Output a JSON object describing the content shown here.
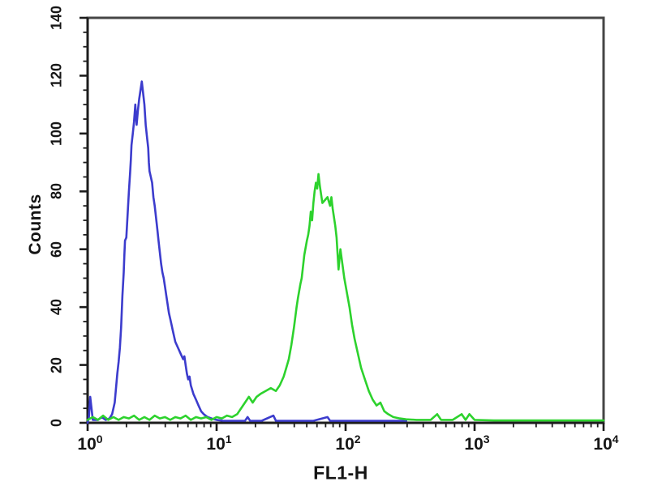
{
  "figure": {
    "background_color": "#ffffff",
    "frame_color": "#454545",
    "tick_color": "#1c1c1c",
    "text_color": "#141414"
  },
  "chart_data": {
    "type": "line",
    "subtype": "flow-cytometry-overlay-histogram",
    "title": "",
    "xlabel": "FL1-H",
    "ylabel": "Counts",
    "x_scale": "log10",
    "x_tick_exponents": [
      0,
      1,
      2,
      3,
      4
    ],
    "xlim": [
      1,
      10000
    ],
    "y_ticks": [
      0,
      20,
      40,
      60,
      80,
      100,
      120,
      140
    ],
    "y_minor_tick_step": 5,
    "ylim": [
      0,
      140
    ],
    "grid": false,
    "legend": "none",
    "series": [
      {
        "name": "blue-curve",
        "color": "#3c3ccd",
        "peak": {
          "x_value": 2.6,
          "counts": 118
        },
        "points_logx_counts": [
          [
            0.0,
            0
          ],
          [
            0.01,
            2
          ],
          [
            0.02,
            9
          ],
          [
            0.03,
            5
          ],
          [
            0.04,
            1
          ],
          [
            0.08,
            1
          ],
          [
            0.11,
            2
          ],
          [
            0.14,
            1
          ],
          [
            0.17,
            1.5
          ],
          [
            0.19,
            3
          ],
          [
            0.21,
            7
          ],
          [
            0.22,
            12
          ],
          [
            0.23,
            17
          ],
          [
            0.24,
            21
          ],
          [
            0.25,
            26
          ],
          [
            0.26,
            33
          ],
          [
            0.27,
            44
          ],
          [
            0.28,
            52
          ],
          [
            0.285,
            58
          ],
          [
            0.29,
            63
          ],
          [
            0.3,
            64
          ],
          [
            0.31,
            72
          ],
          [
            0.32,
            80
          ],
          [
            0.33,
            87
          ],
          [
            0.335,
            91
          ],
          [
            0.34,
            96
          ],
          [
            0.35,
            100
          ],
          [
            0.36,
            104
          ],
          [
            0.37,
            110
          ],
          [
            0.375,
            106
          ],
          [
            0.38,
            103
          ],
          [
            0.39,
            108
          ],
          [
            0.4,
            112
          ],
          [
            0.41,
            115
          ],
          [
            0.42,
            118
          ],
          [
            0.43,
            114
          ],
          [
            0.44,
            110
          ],
          [
            0.45,
            103
          ],
          [
            0.46,
            99
          ],
          [
            0.47,
            95
          ],
          [
            0.475,
            90
          ],
          [
            0.48,
            87
          ],
          [
            0.49,
            85
          ],
          [
            0.5,
            83
          ],
          [
            0.51,
            78
          ],
          [
            0.52,
            75
          ],
          [
            0.53,
            71
          ],
          [
            0.54,
            67
          ],
          [
            0.55,
            63
          ],
          [
            0.56,
            59
          ],
          [
            0.57,
            55
          ],
          [
            0.58,
            52
          ],
          [
            0.59,
            50
          ],
          [
            0.6,
            47
          ],
          [
            0.61,
            44
          ],
          [
            0.62,
            41
          ],
          [
            0.63,
            38
          ],
          [
            0.64,
            36
          ],
          [
            0.65,
            34
          ],
          [
            0.66,
            32
          ],
          [
            0.67,
            30
          ],
          [
            0.68,
            28
          ],
          [
            0.7,
            26
          ],
          [
            0.72,
            24
          ],
          [
            0.74,
            22
          ],
          [
            0.75,
            23
          ],
          [
            0.76,
            20
          ],
          [
            0.77,
            17
          ],
          [
            0.78,
            15
          ],
          [
            0.79,
            16
          ],
          [
            0.8,
            13
          ],
          [
            0.82,
            10
          ],
          [
            0.84,
            8
          ],
          [
            0.86,
            6
          ],
          [
            0.88,
            4
          ],
          [
            0.9,
            3
          ],
          [
            0.93,
            2
          ],
          [
            0.96,
            1.5
          ],
          [
            1.0,
            1
          ],
          [
            1.05,
            0.7
          ],
          [
            1.12,
            0.7
          ],
          [
            1.22,
            0.7
          ],
          [
            1.24,
            2
          ],
          [
            1.26,
            0.7
          ],
          [
            1.35,
            0.7
          ],
          [
            1.44,
            2.5
          ],
          [
            1.46,
            0.7
          ],
          [
            1.6,
            0.7
          ],
          [
            1.75,
            0.7
          ],
          [
            1.86,
            2
          ],
          [
            1.88,
            0.7
          ],
          [
            2.05,
            0.7
          ],
          [
            2.2,
            0.7
          ],
          [
            2.35,
            0.7
          ],
          [
            2.47,
            0.7
          ]
        ]
      },
      {
        "name": "green-curve",
        "color": "#2dd22d",
        "peak": {
          "x_value": 62,
          "counts": 86
        },
        "points_logx_counts": [
          [
            0.0,
            1
          ],
          [
            0.04,
            2
          ],
          [
            0.08,
            1
          ],
          [
            0.12,
            2.5
          ],
          [
            0.16,
            1
          ],
          [
            0.2,
            2
          ],
          [
            0.24,
            1
          ],
          [
            0.28,
            2
          ],
          [
            0.32,
            1.5
          ],
          [
            0.36,
            2.5
          ],
          [
            0.4,
            1
          ],
          [
            0.44,
            2
          ],
          [
            0.48,
            1
          ],
          [
            0.52,
            2.5
          ],
          [
            0.56,
            1.5
          ],
          [
            0.6,
            2
          ],
          [
            0.64,
            1
          ],
          [
            0.68,
            2
          ],
          [
            0.72,
            1.5
          ],
          [
            0.76,
            2.5
          ],
          [
            0.8,
            1
          ],
          [
            0.84,
            2
          ],
          [
            0.88,
            1.5
          ],
          [
            0.92,
            2
          ],
          [
            0.96,
            1
          ],
          [
            1.0,
            2
          ],
          [
            1.04,
            1.5
          ],
          [
            1.08,
            2.5
          ],
          [
            1.12,
            2
          ],
          [
            1.16,
            3
          ],
          [
            1.19,
            5
          ],
          [
            1.22,
            7
          ],
          [
            1.25,
            9
          ],
          [
            1.28,
            7
          ],
          [
            1.31,
            9
          ],
          [
            1.34,
            10
          ],
          [
            1.38,
            11
          ],
          [
            1.42,
            12
          ],
          [
            1.46,
            11
          ],
          [
            1.49,
            13
          ],
          [
            1.52,
            16
          ],
          [
            1.54,
            19
          ],
          [
            1.56,
            22
          ],
          [
            1.58,
            27
          ],
          [
            1.6,
            33
          ],
          [
            1.62,
            40
          ],
          [
            1.63,
            43
          ],
          [
            1.65,
            48
          ],
          [
            1.66,
            50
          ],
          [
            1.68,
            58
          ],
          [
            1.7,
            63
          ],
          [
            1.71,
            65
          ],
          [
            1.72,
            68
          ],
          [
            1.73,
            73
          ],
          [
            1.74,
            70
          ],
          [
            1.75,
            76
          ],
          [
            1.76,
            80
          ],
          [
            1.77,
            83
          ],
          [
            1.78,
            81
          ],
          [
            1.79,
            86
          ],
          [
            1.8,
            82
          ],
          [
            1.81,
            79
          ],
          [
            1.82,
            76
          ],
          [
            1.84,
            77
          ],
          [
            1.86,
            78
          ],
          [
            1.88,
            75
          ],
          [
            1.89,
            78
          ],
          [
            1.9,
            74
          ],
          [
            1.92,
            68
          ],
          [
            1.93,
            64
          ],
          [
            1.945,
            53
          ],
          [
            1.96,
            60
          ],
          [
            1.975,
            55
          ],
          [
            1.99,
            50
          ],
          [
            2.01,
            45
          ],
          [
            2.03,
            40
          ],
          [
            2.05,
            34
          ],
          [
            2.07,
            29
          ],
          [
            2.1,
            23
          ],
          [
            2.12,
            19
          ],
          [
            2.15,
            15
          ],
          [
            2.18,
            11
          ],
          [
            2.21,
            8
          ],
          [
            2.24,
            6
          ],
          [
            2.27,
            7
          ],
          [
            2.3,
            4
          ],
          [
            2.33,
            3
          ],
          [
            2.37,
            2
          ],
          [
            2.42,
            1.5
          ],
          [
            2.47,
            1.2
          ],
          [
            2.55,
            1
          ],
          [
            2.66,
            1
          ],
          [
            2.71,
            3
          ],
          [
            2.74,
            1
          ],
          [
            2.83,
            1
          ],
          [
            2.9,
            3
          ],
          [
            2.93,
            1
          ],
          [
            2.96,
            3
          ],
          [
            3.0,
            1
          ],
          [
            3.15,
            0.8
          ],
          [
            3.4,
            0.8
          ],
          [
            3.7,
            0.8
          ],
          [
            4.0,
            0.8
          ]
        ]
      }
    ]
  }
}
